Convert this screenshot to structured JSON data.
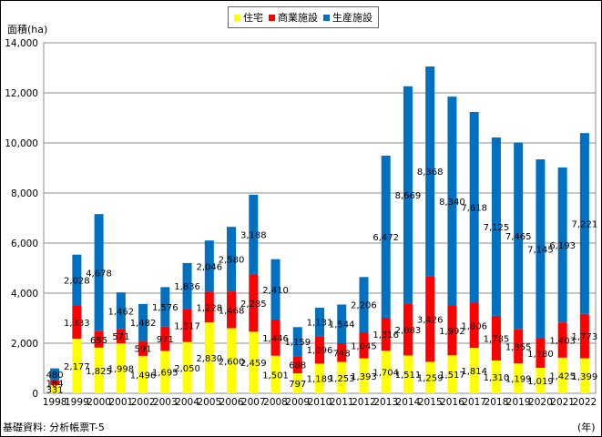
{
  "chart_data": {
    "type": "bar",
    "stacked": true,
    "ylabel": "面積(ha)",
    "xlabel": "",
    "x_unit": "(年)",
    "ylim": [
      0,
      14000
    ],
    "yticks": [
      "0",
      "2,000",
      "4,000",
      "6,000",
      "8,000",
      "10,000",
      "12,000",
      "14,000"
    ],
    "ytick_values": [
      0,
      2000,
      4000,
      6000,
      8000,
      10000,
      12000,
      14000
    ],
    "grid": true,
    "legend_position": "top-center",
    "categories": [
      "1998",
      "1999",
      "2000",
      "2001",
      "2002",
      "2003",
      "2004",
      "2005",
      "2006",
      "2007",
      "2008",
      "2009",
      "2010",
      "2011",
      "2012",
      "2013",
      "2014",
      "2015",
      "2016",
      "2017",
      "2018",
      "2019",
      "2020",
      "2021",
      "2022"
    ],
    "series": [
      {
        "name": "住宅",
        "color": "#ffff00",
        "values": [
          331,
          2177,
          1825,
          1998,
          1496,
          1695,
          2050,
          2830,
          2600,
          2459,
          1501,
          797,
          1189,
          1253,
          1393,
          1704,
          1511,
          1259,
          1517,
          1814,
          1310,
          1199,
          1019,
          1425,
          1399
        ],
        "labels": [
          "331",
          "2,177",
          "1,825",
          "1,998",
          "1,496",
          "1,695",
          "2,050",
          "2,830",
          "2,600",
          "2,459",
          "1,501",
          "797",
          "1,189",
          "1,253",
          "1,393",
          "1,704",
          "1,511",
          "1,259",
          "1,517",
          "1,814",
          "1,310",
          "1,199",
          "1,019",
          "1,425",
          "1,399"
        ]
      },
      {
        "name": "商業施設",
        "color": "#ff0000",
        "values": [
          184,
          1333,
          655,
          571,
          591,
          971,
          1317,
          1228,
          1468,
          2285,
          1446,
          688,
          1096,
          748,
          1045,
          1316,
          2083,
          3426,
          1992,
          1806,
          1785,
          1355,
          1180,
          1403,
          1773
        ],
        "labels": [
          "184",
          "1,333",
          "655",
          "571",
          "591",
          "971",
          "1,317",
          "1,228",
          "1,468",
          "2,285",
          "1,446",
          "688",
          "1,096",
          "748",
          "1,045",
          "1,316",
          "2,083",
          "3,426",
          "1,992",
          "1,806",
          "1,785",
          "1,355",
          "1,180",
          "1,403",
          "1,773"
        ]
      },
      {
        "name": "生産施設",
        "color": "#0070c0",
        "values": [
          480,
          2028,
          4678,
          1462,
          1482,
          1576,
          1836,
          2046,
          2580,
          3188,
          2410,
          1159,
          1131,
          1544,
          2206,
          6472,
          8669,
          8368,
          8340,
          7618,
          7125,
          7465,
          7145,
          6193,
          7221
        ],
        "labels": [
          "480",
          "2,028",
          "4,678",
          "1,462",
          "1,482",
          "1,576",
          "1,836",
          "2,046",
          "2,580",
          "3,188",
          "2,410",
          "1,159",
          "1,131",
          "1,544",
          "2,206",
          "6,472",
          "8,669",
          "8,368",
          "8,340",
          "7,618",
          "7,125",
          "7,465",
          "7,145",
          "6,193",
          "7,221"
        ]
      }
    ]
  },
  "footer": {
    "source": "基礎資料: 分析帳票T-5",
    "x_unit": "(年)"
  }
}
